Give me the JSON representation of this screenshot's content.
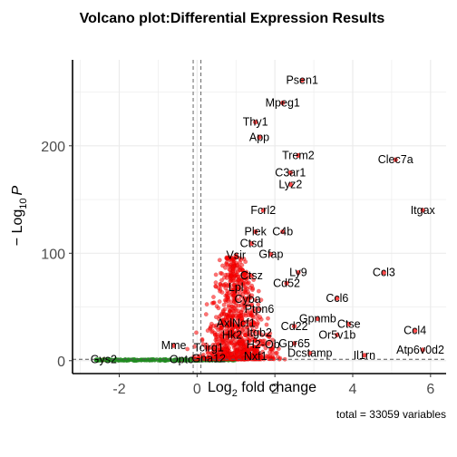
{
  "chart_data": {
    "type": "scatter",
    "title": "Volcano plot:Differential Expression Results",
    "xlabel_main": "Log",
    "xlabel_sub": "2",
    "xlabel_rest": " fold change",
    "ylabel_prefix": "− Log",
    "ylabel_sub": "10",
    "ylabel_var": "P",
    "caption": "total = 33059 variables",
    "xlim": [
      -3.2,
      6.4
    ],
    "ylim": [
      -12,
      280
    ],
    "x_ticks": [
      -2,
      0,
      2,
      4,
      6
    ],
    "x_tick_labels": [
      "-2",
      "0",
      "2",
      "4",
      "6"
    ],
    "y_ticks": [
      0,
      100,
      200
    ],
    "y_tick_labels": [
      "0",
      "100",
      "200"
    ],
    "fc_cutoffs": [
      -0.1,
      0.1
    ],
    "p_cutoff": 1.3,
    "grid": true,
    "colors": {
      "significant": "#ff0000",
      "fc_only": "#228b22",
      "nonsignificant": "#808080",
      "grid": "#ebebeb",
      "cutoff_line": "#555555"
    },
    "labeled_genes": [
      {
        "gene": "Psen1",
        "x": 2.7,
        "y": 261
      },
      {
        "gene": "Mpeg1",
        "x": 2.2,
        "y": 240
      },
      {
        "gene": "Thy1",
        "x": 1.5,
        "y": 222
      },
      {
        "gene": "App",
        "x": 1.6,
        "y": 208
      },
      {
        "gene": "Trem2",
        "x": 2.6,
        "y": 191
      },
      {
        "gene": "Clec7a",
        "x": 5.1,
        "y": 187
      },
      {
        "gene": "C3ar1",
        "x": 2.4,
        "y": 175
      },
      {
        "gene": "Lyz2",
        "x": 2.4,
        "y": 164
      },
      {
        "gene": "Fcrl2",
        "x": 1.7,
        "y": 140
      },
      {
        "gene": "Itgax",
        "x": 5.8,
        "y": 140
      },
      {
        "gene": "Plek",
        "x": 1.5,
        "y": 120
      },
      {
        "gene": "C4b",
        "x": 2.2,
        "y": 120
      },
      {
        "gene": "Ctsd",
        "x": 1.4,
        "y": 109
      },
      {
        "gene": "Vsir",
        "x": 1.0,
        "y": 98
      },
      {
        "gene": "Gfap",
        "x": 1.9,
        "y": 99
      },
      {
        "gene": "Ly9",
        "x": 2.6,
        "y": 82
      },
      {
        "gene": "Ctsz",
        "x": 1.4,
        "y": 79
      },
      {
        "gene": "Ccl3",
        "x": 4.8,
        "y": 82
      },
      {
        "gene": "Cd52",
        "x": 2.3,
        "y": 72
      },
      {
        "gene": "Lpl",
        "x": 1.0,
        "y": 68
      },
      {
        "gene": "Ccl6",
        "x": 3.6,
        "y": 58
      },
      {
        "gene": "Cyba",
        "x": 1.3,
        "y": 57
      },
      {
        "gene": "Ptpn6",
        "x": 1.6,
        "y": 48
      },
      {
        "gene": "Gpnmb",
        "x": 3.1,
        "y": 39
      },
      {
        "gene": "Axl",
        "x": 0.7,
        "y": 35
      },
      {
        "gene": "Ncf1",
        "x": 1.2,
        "y": 35
      },
      {
        "gene": "Ctse",
        "x": 3.9,
        "y": 34
      },
      {
        "gene": "Cd22",
        "x": 2.5,
        "y": 32
      },
      {
        "gene": "Ccl4",
        "x": 5.6,
        "y": 28
      },
      {
        "gene": "Hk2",
        "x": 0.9,
        "y": 24
      },
      {
        "gene": "Itgb2",
        "x": 1.6,
        "y": 26
      },
      {
        "gene": "Or5v1b",
        "x": 3.6,
        "y": 24
      },
      {
        "gene": "H2-Ob",
        "x": 1.7,
        "y": 15
      },
      {
        "gene": "Gpr65",
        "x": 2.5,
        "y": 16
      },
      {
        "gene": "Mme",
        "x": -0.6,
        "y": 14
      },
      {
        "gene": "Tcirg1",
        "x": 0.3,
        "y": 12
      },
      {
        "gene": "Atp6v0d2",
        "x": 5.8,
        "y": 10
      },
      {
        "gene": "Dcstamp",
        "x": 2.9,
        "y": 7
      },
      {
        "gene": "Il1rn",
        "x": 4.3,
        "y": 5
      },
      {
        "gene": "Nxf1",
        "x": 1.5,
        "y": 4
      },
      {
        "gene": "Gys2",
        "x": -2.4,
        "y": 1
      },
      {
        "gene": "Optc",
        "x": -0.4,
        "y": 1
      },
      {
        "gene": "Gna12",
        "x": 0.3,
        "y": 2
      }
    ]
  }
}
